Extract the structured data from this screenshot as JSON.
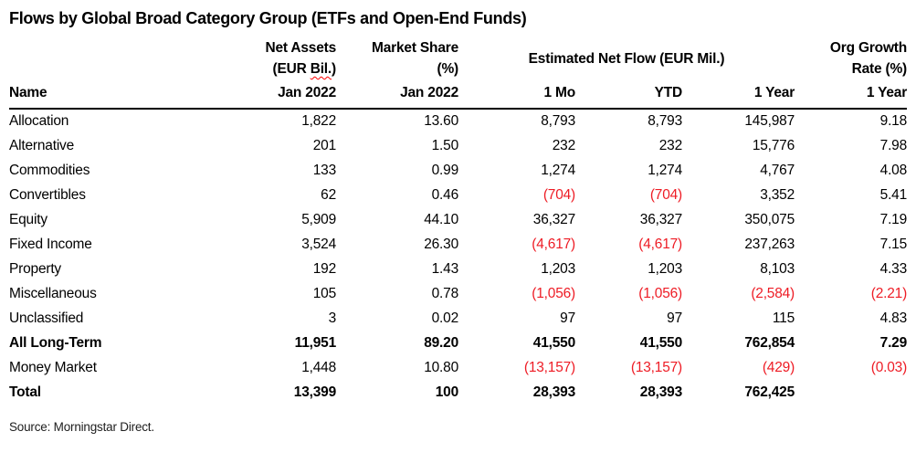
{
  "title": "Flows by Global Broad Category Group (ETFs and Open-End Funds)",
  "source": "Source: Morningstar Direct.",
  "colors": {
    "negative": "#ee1c25",
    "text": "#000000",
    "background": "#ffffff",
    "spellcheck_squiggle": "#ff0000"
  },
  "header": {
    "name_label": "Name",
    "net_assets": {
      "line1": "Net Assets",
      "line2_prefix": "(EUR ",
      "line2_wavy": "Bil.",
      "line2_suffix": ")",
      "period": "Jan 2022"
    },
    "market_share": {
      "line1": "Market Share",
      "line2": "(%)",
      "period": "Jan 2022"
    },
    "flow_group": {
      "label": "Estimated Net Flow (EUR Mil.)",
      "sub": [
        "1 Mo",
        "YTD",
        "1 Year"
      ]
    },
    "org_growth": {
      "line1": "Org Growth",
      "line2": "Rate (%)",
      "period": "1 Year"
    }
  },
  "chart_data": {
    "type": "table",
    "title": "Flows by Global Broad Category Group (ETFs and Open-End Funds)",
    "columns": [
      "Name",
      "Net Assets (EUR Bil.) Jan 2022",
      "Market Share (%) Jan 2022",
      "Estimated Net Flow (EUR Mil.) 1 Mo",
      "Estimated Net Flow (EUR Mil.) YTD",
      "Estimated Net Flow (EUR Mil.) 1 Year",
      "Org Growth Rate (%) 1 Year"
    ]
  },
  "rows": [
    {
      "name": "Allocation",
      "bold": false,
      "values": [
        "1,822",
        "13.60",
        "8,793",
        "8,793",
        "145,987",
        "9.18"
      ]
    },
    {
      "name": "Alternative",
      "bold": false,
      "values": [
        "201",
        "1.50",
        "232",
        "232",
        "15,776",
        "7.98"
      ]
    },
    {
      "name": "Commodities",
      "bold": false,
      "values": [
        "133",
        "0.99",
        "1,274",
        "1,274",
        "4,767",
        "4.08"
      ]
    },
    {
      "name": "Convertibles",
      "bold": false,
      "values": [
        "62",
        "0.46",
        "(704)",
        "(704)",
        "3,352",
        "5.41"
      ]
    },
    {
      "name": "Equity",
      "bold": false,
      "values": [
        "5,909",
        "44.10",
        "36,327",
        "36,327",
        "350,075",
        "7.19"
      ]
    },
    {
      "name": "Fixed Income",
      "bold": false,
      "values": [
        "3,524",
        "26.30",
        "(4,617)",
        "(4,617)",
        "237,263",
        "7.15"
      ]
    },
    {
      "name": "Property",
      "bold": false,
      "values": [
        "192",
        "1.43",
        "1,203",
        "1,203",
        "8,103",
        "4.33"
      ]
    },
    {
      "name": "Miscellaneous",
      "bold": false,
      "values": [
        "105",
        "0.78",
        "(1,056)",
        "(1,056)",
        "(2,584)",
        "(2.21)"
      ]
    },
    {
      "name": "Unclassified",
      "bold": false,
      "values": [
        "3",
        "0.02",
        "97",
        "97",
        "115",
        "4.83"
      ]
    },
    {
      "name": "All Long-Term",
      "bold": true,
      "values": [
        "11,951",
        "89.20",
        "41,550",
        "41,550",
        "762,854",
        "7.29"
      ]
    },
    {
      "name": "Money Market",
      "bold": false,
      "values": [
        "1,448",
        "10.80",
        "(13,157)",
        "(13,157)",
        "(429)",
        "(0.03)"
      ]
    },
    {
      "name": "Total",
      "bold": true,
      "values": [
        "13,399",
        "100",
        "28,393",
        "28,393",
        "762,425",
        ""
      ]
    }
  ]
}
